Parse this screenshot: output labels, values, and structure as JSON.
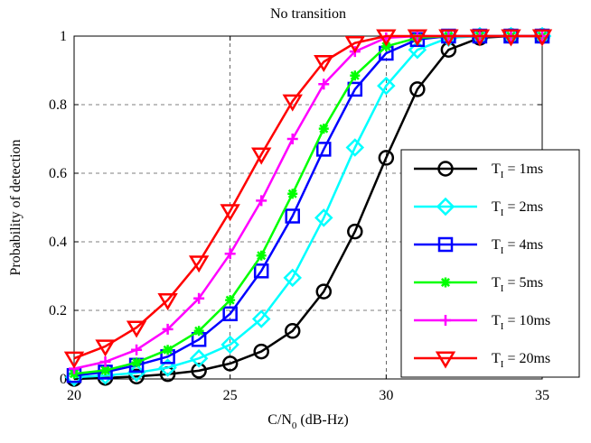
{
  "chart_data": {
    "type": "line",
    "title": "No transition",
    "xlabel": "C/N",
    "xlabel_sub": "0",
    "xlabel_suffix": " (dB-Hz)",
    "ylabel": "Probability of detection",
    "xlim": [
      20,
      35
    ],
    "ylim": [
      0,
      1
    ],
    "xticks": [
      20,
      25,
      30,
      35
    ],
    "yticks": [
      0,
      0.2,
      0.4,
      0.6,
      0.8,
      1
    ],
    "ytick_labels": [
      "0",
      "0.2",
      "0.4",
      "0.6",
      "0.8",
      "1"
    ],
    "grid": true,
    "legend_position": "lower-right",
    "x": [
      20,
      21,
      22,
      23,
      24,
      25,
      26,
      27,
      28,
      29,
      30,
      31,
      32,
      33,
      34,
      35
    ],
    "series": [
      {
        "name_main": "T",
        "name_sub": "I",
        "name_rest": " =  1ms",
        "color": "#000000",
        "marker": "circle",
        "values": [
          0.0,
          0.003,
          0.007,
          0.014,
          0.024,
          0.045,
          0.08,
          0.14,
          0.255,
          0.43,
          0.645,
          0.845,
          0.96,
          0.995,
          1.0,
          1.0
        ]
      },
      {
        "name_main": "T",
        "name_sub": "I",
        "name_rest": " =  2ms",
        "color": "#00ffff",
        "marker": "diamond",
        "values": [
          0.005,
          0.01,
          0.018,
          0.033,
          0.06,
          0.1,
          0.175,
          0.295,
          0.47,
          0.675,
          0.855,
          0.96,
          0.995,
          1.0,
          1.0,
          1.0
        ]
      },
      {
        "name_main": "T",
        "name_sub": "I",
        "name_rest": " =  4ms",
        "color": "#0000ff",
        "marker": "square",
        "values": [
          0.01,
          0.02,
          0.04,
          0.065,
          0.115,
          0.19,
          0.315,
          0.475,
          0.67,
          0.845,
          0.95,
          0.99,
          1.0,
          1.0,
          1.0,
          1.0
        ]
      },
      {
        "name_main": "T",
        "name_sub": "I",
        "name_rest": " =  5ms",
        "color": "#00ff00",
        "marker": "star",
        "values": [
          0.015,
          0.025,
          0.048,
          0.085,
          0.14,
          0.23,
          0.36,
          0.54,
          0.73,
          0.885,
          0.97,
          0.995,
          1.0,
          1.0,
          1.0,
          1.0
        ]
      },
      {
        "name_main": "T",
        "name_sub": "I",
        "name_rest": " = 10ms",
        "color": "#ff00ff",
        "marker": "plus",
        "values": [
          0.03,
          0.05,
          0.085,
          0.145,
          0.235,
          0.365,
          0.52,
          0.7,
          0.86,
          0.955,
          0.995,
          1.0,
          1.0,
          1.0,
          1.0,
          1.0
        ]
      },
      {
        "name_main": "T",
        "name_sub": "I",
        "name_rest": " = 20ms",
        "color": "#ff0000",
        "marker": "triangle-down",
        "values": [
          0.06,
          0.095,
          0.15,
          0.23,
          0.34,
          0.49,
          0.655,
          0.81,
          0.925,
          0.98,
          1.0,
          1.0,
          1.0,
          1.0,
          1.0,
          1.0
        ]
      }
    ]
  }
}
